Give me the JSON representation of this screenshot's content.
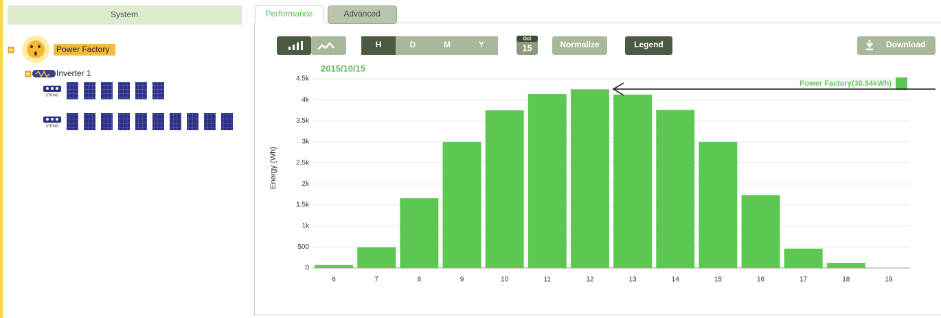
{
  "sidebar": {
    "title": "System",
    "plant": "Power Factory",
    "inverter": "Inverter 1",
    "strings": [
      "STRING",
      "STRING"
    ]
  },
  "tabs": [
    "Performance",
    "Advanced"
  ],
  "toolbar": {
    "resolutions": [
      "H",
      "D",
      "M",
      "Y"
    ],
    "date_month": "Oct",
    "date_day": "15",
    "normalize": "Normalize",
    "legend": "Legend",
    "download": "Download"
  },
  "chart_data": {
    "type": "bar",
    "title": "2015/10/15",
    "y_label": "Energy (Wh)",
    "categories": [
      "6",
      "7",
      "8",
      "9",
      "10",
      "11",
      "12",
      "13",
      "14",
      "15",
      "16",
      "17",
      "18",
      "19"
    ],
    "series": [
      {
        "name": "Power Factory(30.54kWh)",
        "color": "#5cc751",
        "values": [
          70,
          490,
          1660,
          3000,
          3750,
          4140,
          4250,
          4125,
          3760,
          3000,
          1730,
          460,
          115,
          0
        ]
      }
    ],
    "ylim": [
      0,
      4500
    ],
    "yticks": [
      0,
      500,
      {
        "value": 1000,
        "label": "1k"
      },
      {
        "value": 1500,
        "label": "1.5k"
      },
      {
        "value": 2000,
        "label": "2k"
      },
      {
        "value": 2500,
        "label": "2.5k"
      },
      {
        "value": 3000,
        "label": "3k"
      },
      {
        "value": 3500,
        "label": "3.5k"
      },
      {
        "value": 4000,
        "label": "4k"
      },
      {
        "value": 4500,
        "label": "4.5k"
      }
    ],
    "grid": true,
    "legend": "top-right"
  }
}
